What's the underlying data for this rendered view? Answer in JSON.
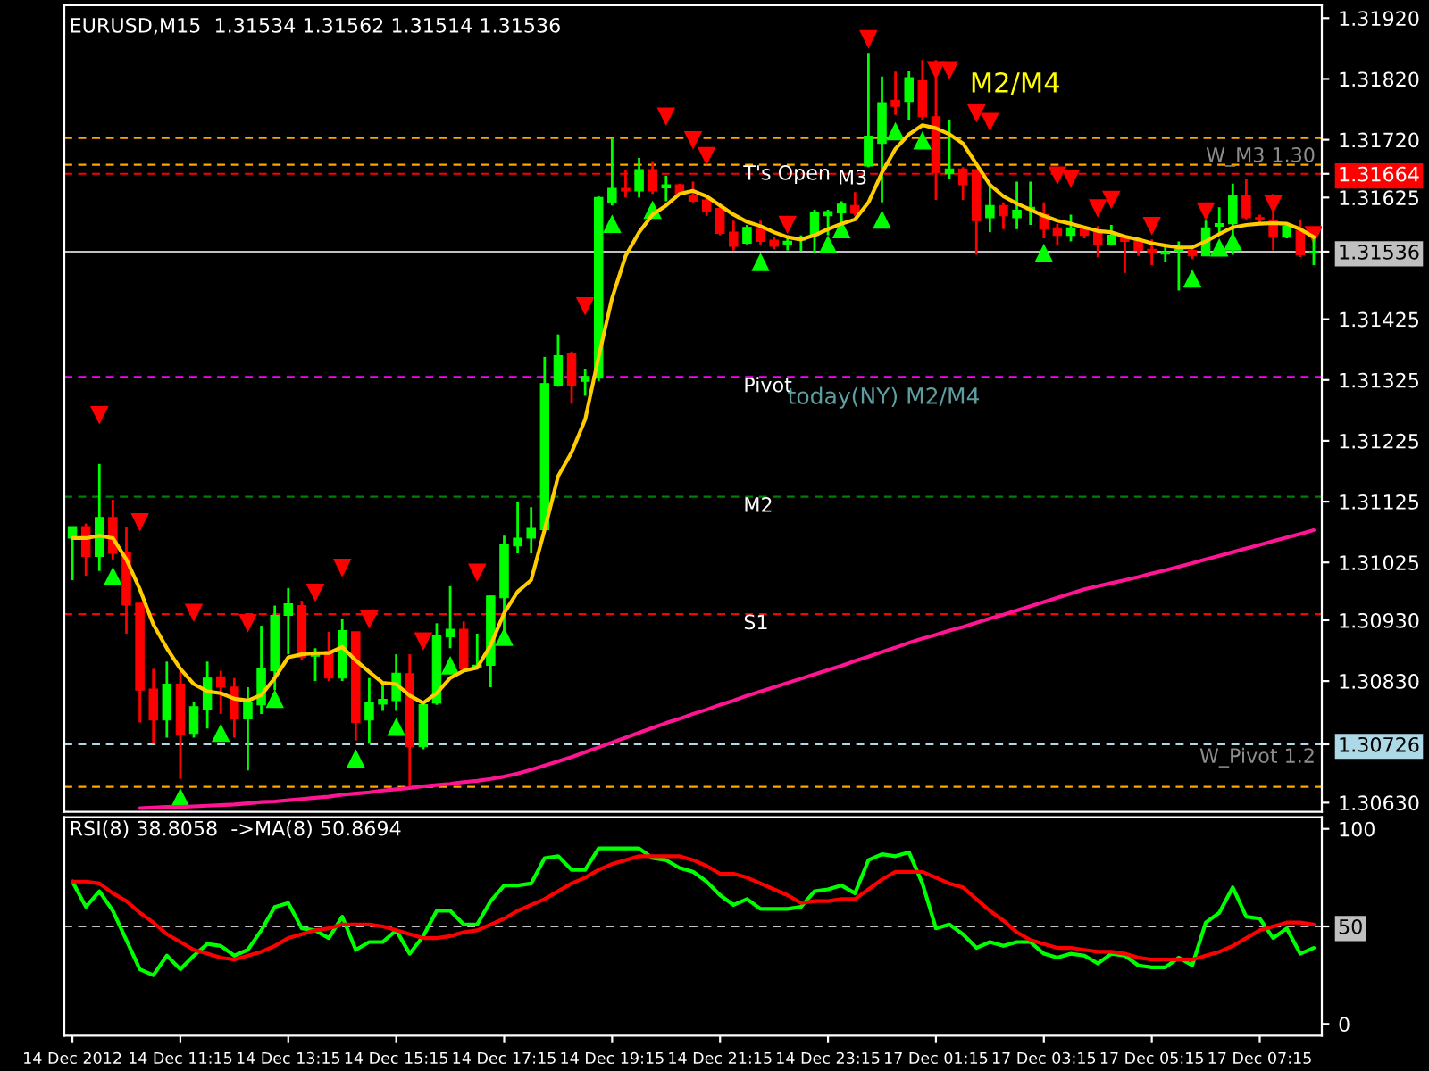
{
  "chart_data": [
    {
      "type": "candlestick",
      "title": "EURUSD,M15  1.31534 1.31562 1.31514 1.31536",
      "categories": [
        null,
        null,
        null,
        null,
        null,
        null,
        null,
        null,
        null,
        null,
        null,
        null,
        null,
        null,
        null,
        null,
        null,
        null,
        null,
        null,
        null,
        null,
        null,
        null,
        null,
        null,
        null,
        null,
        null,
        null,
        null,
        null,
        null,
        null,
        null,
        null,
        null,
        null,
        null,
        null,
        null,
        null,
        null,
        null,
        null,
        null,
        null,
        null,
        null,
        null,
        null,
        null,
        null,
        null,
        null,
        null,
        null,
        null,
        null,
        null,
        null,
        null,
        null,
        null,
        null,
        null,
        null,
        null,
        null,
        null,
        null,
        null,
        null,
        null,
        null,
        null,
        null,
        null,
        null,
        null,
        null,
        null,
        null,
        null,
        null,
        null,
        null,
        null,
        null,
        null,
        null,
        null,
        null
      ],
      "ohlc": [
        [
          1.31065,
          1.31084,
          1.30996,
          1.31084
        ],
        [
          1.31084,
          1.31089,
          1.31003,
          1.31035
        ],
        [
          1.31035,
          1.31187,
          1.31011,
          1.31099
        ],
        [
          1.31099,
          1.31128,
          1.3103,
          1.3104
        ],
        [
          1.31042,
          1.31084,
          1.30908,
          1.30955
        ],
        [
          1.30958,
          1.30958,
          1.30762,
          1.30815
        ],
        [
          1.30817,
          1.3085,
          1.30727,
          1.30766
        ],
        [
          1.30766,
          1.30862,
          1.30737,
          1.30825
        ],
        [
          1.30825,
          1.30845,
          1.30669,
          1.30742
        ],
        [
          1.30744,
          1.30796,
          1.30737,
          1.30788
        ],
        [
          1.30783,
          1.30862,
          1.30752,
          1.30835
        ],
        [
          1.30837,
          1.30847,
          1.30776,
          1.3082
        ],
        [
          1.3082,
          1.30835,
          1.30737,
          1.30768
        ],
        [
          1.30768,
          1.3082,
          1.30683,
          1.30796
        ],
        [
          1.30791,
          1.30921,
          1.30776,
          1.3085
        ],
        [
          1.30847,
          1.30954,
          1.30815,
          1.30938
        ],
        [
          1.30938,
          1.30983,
          1.30874,
          1.30957
        ],
        [
          1.30954,
          1.30962,
          1.30864,
          1.30869
        ],
        [
          1.30871,
          1.30884,
          1.3083,
          1.30877
        ],
        [
          1.30879,
          1.30911,
          1.3083,
          1.30835
        ],
        [
          1.30835,
          1.30933,
          1.3083,
          1.30913
        ],
        [
          1.30911,
          1.30911,
          1.30732,
          1.30762
        ],
        [
          1.30766,
          1.30835,
          1.30727,
          1.30794
        ],
        [
          1.30792,
          1.30827,
          1.30781,
          1.308
        ],
        [
          1.30798,
          1.30874,
          1.30781,
          1.30843
        ],
        [
          1.30842,
          1.30874,
          1.30654,
          1.30722
        ],
        [
          1.30722,
          1.30796,
          1.30718,
          1.30791
        ],
        [
          1.30794,
          1.30925,
          1.30791,
          1.30905
        ],
        [
          1.30903,
          1.30986,
          1.30884,
          1.30915
        ],
        [
          1.30915,
          1.30928,
          1.30847,
          1.3085
        ],
        [
          1.30852,
          1.30908,
          1.3085,
          1.30856
        ],
        [
          1.30856,
          1.3097,
          1.3082,
          1.3097
        ],
        [
          1.30967,
          1.31069,
          1.30903,
          1.31055
        ],
        [
          1.31052,
          1.31125,
          1.3104,
          1.31065
        ],
        [
          1.31065,
          1.31116,
          1.3104,
          1.31081
        ],
        [
          1.31079,
          1.31363,
          1.31079,
          1.31319
        ],
        [
          1.31316,
          1.314,
          1.31314,
          1.31365
        ],
        [
          1.31368,
          1.31372,
          1.31286,
          1.31316
        ],
        [
          1.31323,
          1.31343,
          1.31299,
          1.31331
        ],
        [
          1.31328,
          1.31627,
          1.31323,
          1.31625
        ],
        [
          1.31617,
          1.31722,
          1.31612,
          1.3164
        ],
        [
          1.3164,
          1.31671,
          1.31625,
          1.31636
        ],
        [
          1.31636,
          1.3169,
          1.31625,
          1.31671
        ],
        [
          1.31671,
          1.31685,
          1.31631,
          1.31636
        ],
        [
          1.31641,
          1.31661,
          1.31619,
          1.31646
        ],
        [
          1.31646,
          1.31648,
          1.31631,
          1.31631
        ],
        [
          1.31628,
          1.31651,
          1.31617,
          1.31619
        ],
        [
          1.31621,
          1.31627,
          1.31595,
          1.31602
        ],
        [
          1.31607,
          1.31612,
          1.31563,
          1.31566
        ],
        [
          1.31568,
          1.31587,
          1.31538,
          1.31545
        ],
        [
          1.3155,
          1.3158,
          1.31548,
          1.31576
        ],
        [
          1.31573,
          1.31587,
          1.31548,
          1.31553
        ],
        [
          1.31555,
          1.3156,
          1.3154,
          1.31545
        ],
        [
          1.31548,
          1.3156,
          1.31538,
          1.31553
        ],
        [
          1.31555,
          1.31563,
          1.31537,
          1.31558
        ],
        [
          1.31563,
          1.31605,
          1.31534,
          1.31601
        ],
        [
          1.31595,
          1.31605,
          1.31563,
          1.31602
        ],
        [
          1.316,
          1.31619,
          1.3158,
          1.31614
        ],
        [
          1.31612,
          1.31634,
          1.31595,
          1.31599
        ],
        [
          1.31677,
          1.31863,
          1.31675,
          1.31726
        ],
        [
          1.31714,
          1.31824,
          1.31617,
          1.31781
        ],
        [
          1.31785,
          1.31832,
          1.31761,
          1.31775
        ],
        [
          1.31783,
          1.31834,
          1.31753,
          1.31822
        ],
        [
          1.31817,
          1.31851,
          1.31753,
          1.31758
        ],
        [
          1.31758,
          1.31851,
          1.31621,
          1.31666
        ],
        [
          1.31664,
          1.31753,
          1.31656,
          1.31672
        ],
        [
          1.31672,
          1.31675,
          1.31621,
          1.31646
        ],
        [
          1.31671,
          1.31671,
          1.31531,
          1.31587
        ],
        [
          1.31592,
          1.31644,
          1.31568,
          1.31612
        ],
        [
          1.31612,
          1.31617,
          1.31573,
          1.31595
        ],
        [
          1.31592,
          1.31651,
          1.31573,
          1.31604
        ],
        [
          1.31605,
          1.31651,
          1.3158,
          1.31609
        ],
        [
          1.31597,
          1.31617,
          1.31558,
          1.31573
        ],
        [
          1.31575,
          1.31582,
          1.31546,
          1.31563
        ],
        [
          1.31563,
          1.31597,
          1.31553,
          1.31575
        ],
        [
          1.31575,
          1.31578,
          1.31558,
          1.31563
        ],
        [
          1.31568,
          1.31578,
          1.31527,
          1.31548
        ],
        [
          1.31548,
          1.3158,
          1.31546,
          1.31563
        ],
        [
          1.3156,
          1.31563,
          1.31501,
          1.31553
        ],
        [
          1.31553,
          1.31558,
          1.31529,
          1.31538
        ],
        [
          1.3154,
          1.31556,
          1.31514,
          1.31535
        ],
        [
          1.31532,
          1.31548,
          1.31519,
          1.31536
        ],
        [
          1.31537,
          1.31553,
          1.31472,
          1.3154
        ],
        [
          1.31538,
          1.3154,
          1.31524,
          1.31529
        ],
        [
          1.31529,
          1.31587,
          1.31529,
          1.31575
        ],
        [
          1.31578,
          1.31609,
          1.31563,
          1.31582
        ],
        [
          1.31582,
          1.31648,
          1.31531,
          1.31628
        ],
        [
          1.31628,
          1.31656,
          1.31589,
          1.31592
        ],
        [
          1.31592,
          1.31597,
          1.31582,
          1.31589
        ],
        [
          1.31587,
          1.31631,
          1.31538,
          1.3156
        ],
        [
          1.3156,
          1.3158,
          1.31558,
          1.31578
        ],
        [
          1.3157,
          1.31589,
          1.31527,
          1.31531
        ],
        [
          1.31534,
          1.31562,
          1.31514,
          1.31536
        ]
      ],
      "colors": [
        "#00ff00",
        "#ff0000",
        "#00ff00",
        "#ff0000",
        "#ff0000",
        "#ff0000",
        "#ff0000",
        "#00ff00",
        "#ff0000",
        "#00ff00",
        "#00ff00",
        "#ff0000",
        "#ff0000",
        "#00ff00",
        "#00ff00",
        "#00ff00",
        "#00ff00",
        "#ff0000",
        "#00ff00",
        "#ff0000",
        "#00ff00",
        "#ff0000",
        "#00ff00",
        "#00ff00",
        "#00ff00",
        "#ff0000",
        "#00ff00",
        "#00ff00",
        "#00ff00",
        "#ff0000",
        "#00ff00",
        "#00ff00",
        "#00ff00",
        "#00ff00",
        "#00ff00",
        "#00ff00",
        "#00ff00",
        "#ff0000",
        "#00ff00",
        "#00ff00",
        "#00ff00",
        "#ff0000",
        "#00ff00",
        "#ff0000",
        "#00ff00",
        "#ff0000",
        "#ff0000",
        "#ff0000",
        "#ff0000",
        "#ff0000",
        "#00ff00",
        "#ff0000",
        "#ff0000",
        "#00ff00",
        "#00ff00",
        "#00ff00",
        "#00ff00",
        "#00ff00",
        "#ff0000",
        "#00ff00",
        "#00ff00",
        "#ff0000",
        "#00ff00",
        "#ff0000",
        "#ff0000",
        "#00ff00",
        "#ff0000",
        "#ff0000",
        "#00ff00",
        "#ff0000",
        "#00ff00",
        "#00ff00",
        "#ff0000",
        "#ff0000",
        "#00ff00",
        "#ff0000",
        "#ff0000",
        "#00ff00",
        "#ff0000",
        "#ff0000",
        "#ff0000",
        "#00ff00",
        "#00ff00",
        "#ff0000",
        "#00ff00",
        "#00ff00",
        "#00ff00",
        "#ff0000",
        "#ff0000",
        "#ff0000",
        "#00ff00",
        "#ff0000",
        "#00ff00"
      ],
      "series": [
        {
          "type": "line",
          "color": "#ffcc00",
          "marker": "none",
          "line_style": "solid",
          "values": [
            1.31065,
            1.31065,
            1.31069,
            1.31065,
            1.3103,
            1.30981,
            1.30923,
            1.30884,
            1.3085,
            1.30825,
            1.30813,
            1.3081,
            1.30801,
            1.30798,
            1.30807,
            1.30835,
            1.30869,
            1.30874,
            1.30876,
            1.30876,
            1.30886,
            1.30864,
            1.30845,
            1.30827,
            1.30825,
            1.30806,
            1.30794,
            1.3081,
            1.30835,
            1.30847,
            1.30852,
            1.30889,
            1.30942,
            1.30977,
            1.30996,
            1.31079,
            1.31167,
            1.31206,
            1.3126,
            1.31363,
            1.3146,
            1.31529,
            1.31568,
            1.31597,
            1.31612,
            1.31631,
            1.31636,
            1.31627,
            1.31612,
            1.31597,
            1.31585,
            1.31578,
            1.31568,
            1.3156,
            1.31556,
            1.31563,
            1.31573,
            1.31582,
            1.31589,
            1.31617,
            1.31666,
            1.31705,
            1.31729,
            1.31744,
            1.31739,
            1.31729,
            1.31714,
            1.3168,
            1.31646,
            1.31627,
            1.31615,
            1.31605,
            1.31595,
            1.31587,
            1.31582,
            1.31576,
            1.3157,
            1.31568,
            1.31561,
            1.31556,
            1.3155,
            1.31546,
            1.31543,
            1.31543,
            1.31553,
            1.31565,
            1.31576,
            1.3158,
            1.31582,
            1.31583,
            1.31582,
            1.31573,
            1.3156
          ]
        },
        {
          "type": "line",
          "color": "#ff1493",
          "marker": "none",
          "line_style": "solid",
          "values": [
            null,
            null,
            null,
            null,
            null,
            1.30621,
            1.30622,
            1.30623,
            1.30623,
            1.30624,
            1.30625,
            1.30626,
            1.30627,
            1.30629,
            1.30631,
            1.30632,
            1.30634,
            1.30636,
            1.30638,
            1.3064,
            1.30643,
            1.30645,
            1.30647,
            1.3065,
            1.30652,
            1.30654,
            1.30657,
            1.30659,
            1.30661,
            1.30664,
            1.30666,
            1.30669,
            1.30673,
            1.30678,
            1.30684,
            1.30691,
            1.30698,
            1.30705,
            1.30713,
            1.30721,
            1.30729,
            1.30737,
            1.30745,
            1.30753,
            1.30761,
            1.30768,
            1.30776,
            1.30783,
            1.30791,
            1.30798,
            1.30806,
            1.30813,
            1.3082,
            1.30827,
            1.30834,
            1.30841,
            1.30848,
            1.30855,
            1.30863,
            1.3087,
            1.30878,
            1.30885,
            1.30893,
            1.309,
            1.30906,
            1.30913,
            1.30919,
            1.30926,
            1.30933,
            1.30939,
            1.30946,
            1.30953,
            1.3096,
            1.30967,
            1.30974,
            1.30981,
            1.30986,
            1.30991,
            1.30996,
            1.31001,
            1.31007,
            1.31012,
            1.31018,
            1.31024,
            1.3103,
            1.31036,
            1.31042,
            1.31048,
            1.31054,
            1.3106,
            1.31066,
            1.31072,
            1.31078
          ]
        },
        {
          "type": "scatter",
          "color": "#ff0000",
          "marker": "triangle",
          "values": [
            null,
            null,
            1.31267,
            null,
            null,
            1.31091,
            null,
            null,
            null,
            1.30942,
            null,
            null,
            null,
            1.30925,
            null,
            null,
            null,
            null,
            1.30975,
            null,
            1.31016,
            null,
            1.30931,
            null,
            null,
            null,
            1.30895,
            null,
            null,
            null,
            1.31008,
            null,
            null,
            null,
            null,
            null,
            null,
            null,
            1.31446,
            null,
            null,
            null,
            null,
            null,
            1.31758,
            null,
            1.31719,
            1.31693,
            null,
            null,
            null,
            null,
            null,
            1.3158,
            null,
            null,
            null,
            null,
            null,
            1.31885,
            null,
            null,
            null,
            null,
            1.31834,
            1.31834,
            null,
            1.31763,
            1.31749,
            null,
            null,
            null,
            null,
            1.31661,
            1.31656,
            null,
            1.31607,
            1.31621,
            null,
            null,
            1.31578,
            null,
            null,
            null,
            1.31602,
            null,
            null,
            null,
            null,
            1.31614,
            null,
            null,
            1.31563
          ]
        },
        {
          "type": "scatter",
          "color": "#00ff00",
          "marker": "triangle",
          "values": [
            null,
            null,
            null,
            1.31003,
            null,
            null,
            null,
            null,
            1.30639,
            null,
            null,
            1.30745,
            null,
            null,
            null,
            1.30801,
            null,
            null,
            null,
            null,
            null,
            1.30703,
            null,
            null,
            1.30755,
            null,
            null,
            null,
            1.30856,
            null,
            null,
            null,
            1.30903,
            null,
            null,
            null,
            null,
            null,
            null,
            null,
            1.31582,
            null,
            null,
            1.31605,
            null,
            null,
            null,
            null,
            null,
            null,
            null,
            1.31519,
            null,
            null,
            null,
            null,
            1.31548,
            1.31573,
            null,
            null,
            1.31589,
            1.31734,
            null,
            1.31719,
            null,
            null,
            null,
            null,
            null,
            null,
            null,
            null,
            1.31534,
            null,
            null,
            null,
            null,
            null,
            null,
            null,
            null,
            null,
            null,
            1.31492,
            null,
            1.31543,
            1.31553,
            null,
            null,
            null,
            null,
            null,
            null
          ]
        }
      ],
      "ylim": [
        1.30615,
        1.31941
      ],
      "yticks": [
        {
          "value": 1.3192,
          "label": "1.31920"
        },
        {
          "value": 1.3182,
          "label": "1.31820"
        },
        {
          "value": 1.3172,
          "label": "1.31720"
        },
        {
          "value": 1.31664,
          "label": "1.31664"
        },
        {
          "value": 1.31625,
          "label": "1.31625"
        },
        {
          "value": 1.31536,
          "label": "1.31536"
        },
        {
          "value": 1.31425,
          "label": "1.31425"
        },
        {
          "value": 1.31325,
          "label": "1.31325"
        },
        {
          "value": 1.31225,
          "label": "1.31225"
        },
        {
          "value": 1.31125,
          "label": "1.31125"
        },
        {
          "value": 1.31025,
          "label": "1.31025"
        },
        {
          "value": 1.3093,
          "label": "1.30930"
        },
        {
          "value": 1.3083,
          "label": "1.30830"
        },
        {
          "value": 1.30726,
          "label": "1.30726"
        },
        {
          "value": 1.3063,
          "label": "1.30630"
        }
      ],
      "ref_lines": [
        {
          "axis": "y",
          "value": 1.31723,
          "color": "#ffa500",
          "line_style": "dashed"
        },
        {
          "axis": "y",
          "value": 1.31679,
          "label": "T's Open",
          "color": "#ffa500",
          "line_style": "dashed"
        },
        {
          "axis": "y",
          "value": 1.31664,
          "color": "#ff0000",
          "line_style": "dashed"
        },
        {
          "axis": "y",
          "value": 1.31536,
          "color": "#c0c0c0",
          "line_style": "solid"
        },
        {
          "axis": "y",
          "value": 1.3133,
          "label": "Pivot",
          "color": "#ff00ff",
          "line_style": "dashed"
        },
        {
          "axis": "y",
          "value": 1.31133,
          "label": "M2",
          "color": "#008000",
          "line_style": "dashed"
        },
        {
          "axis": "y",
          "value": 1.3094,
          "label": "S1",
          "color": "#ff0000",
          "line_style": "dashed"
        },
        {
          "axis": "y",
          "value": 1.30726,
          "color": "#add8e6",
          "line_style": "dashed"
        },
        {
          "axis": "y",
          "value": 1.30656,
          "color": "#ffa500",
          "line_style": "dashed"
        }
      ],
      "annotations": [
        "M2/M4",
        "today(NY) M2/M4",
        "M3",
        "W_M3 1.30",
        "W_Pivot 1.2"
      ],
      "tick_labels": "y"
    },
    {
      "type": "line",
      "title": "RSI(8) 38.8058  ->MA(8) 50.8694",
      "categories": [
        "14 Dec 2012",
        null,
        null,
        null,
        null,
        null,
        null,
        null,
        "14 Dec 11:15",
        null,
        null,
        null,
        null,
        null,
        null,
        null,
        "14 Dec 13:15",
        null,
        null,
        null,
        null,
        null,
        null,
        null,
        "14 Dec 15:15",
        null,
        null,
        null,
        null,
        null,
        null,
        null,
        "14 Dec 17:15",
        null,
        null,
        null,
        null,
        null,
        null,
        null,
        "14 Dec 19:15",
        null,
        null,
        null,
        null,
        null,
        null,
        null,
        "14 Dec 21:15",
        null,
        null,
        null,
        null,
        null,
        null,
        null,
        "14 Dec 23:15",
        null,
        null,
        null,
        null,
        null,
        null,
        null,
        "17 Dec 01:15",
        null,
        null,
        null,
        null,
        null,
        null,
        null,
        "17 Dec 03:15",
        null,
        null,
        null,
        null,
        null,
        null,
        null,
        "17 Dec 05:15",
        null,
        null,
        null,
        null,
        null,
        null,
        null,
        "17 Dec 07:15",
        null,
        null,
        null,
        null
      ],
      "series": [
        {
          "color": "#00ff00",
          "values": [
            73,
            60,
            68,
            58,
            43,
            28,
            25,
            35,
            28,
            35,
            41,
            40,
            35,
            38,
            48,
            60,
            62,
            49,
            48,
            44,
            55,
            38,
            42,
            42,
            48,
            36,
            45,
            58,
            58,
            51,
            51,
            63,
            71,
            71,
            72,
            85,
            86,
            79,
            79,
            90,
            90,
            90,
            90,
            85,
            84,
            80,
            78,
            73,
            66,
            61,
            64,
            59,
            59,
            59,
            60,
            68,
            69,
            71,
            67,
            84,
            87,
            86,
            88,
            72,
            49,
            51,
            46,
            39,
            42,
            40,
            42,
            42,
            36,
            34,
            36,
            35,
            31,
            36,
            35,
            30,
            29,
            29,
            34,
            30,
            52,
            57,
            70,
            55,
            54,
            44,
            49,
            36,
            39
          ]
        },
        {
          "color": "#ff0000",
          "values": [
            73,
            73,
            72,
            67,
            63,
            57,
            52,
            46,
            42,
            38,
            36,
            34,
            33,
            35,
            37,
            40,
            44,
            46,
            48,
            49,
            51,
            51,
            51,
            50,
            48,
            46,
            44,
            44,
            45,
            47,
            48,
            51,
            54,
            58,
            61,
            64,
            68,
            72,
            75,
            79,
            82,
            84,
            86,
            86,
            86,
            86,
            84,
            81,
            77,
            77,
            75,
            72,
            69,
            66,
            62,
            63,
            63,
            64,
            64,
            69,
            74,
            78,
            78,
            78,
            75,
            72,
            70,
            64,
            58,
            53,
            47,
            43,
            41,
            39,
            39,
            38,
            37,
            37,
            36,
            34,
            33,
            33,
            33,
            33,
            35,
            37,
            40,
            44,
            48,
            50,
            52,
            52,
            51
          ]
        }
      ],
      "ylim": [
        -6,
        106
      ],
      "yticks": [
        0,
        50,
        100
      ],
      "ref_lines": [
        {
          "axis": "y",
          "value": 50,
          "color": "#c0c0c0",
          "line_style": "dashed"
        }
      ]
    }
  ]
}
